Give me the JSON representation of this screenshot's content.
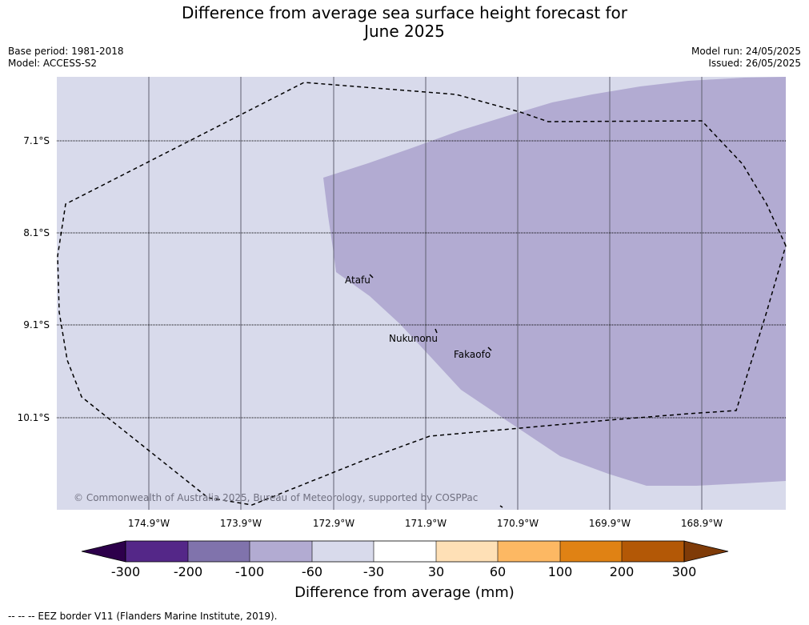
{
  "title_line1": "Difference from average sea surface height forecast for",
  "title_line2": "June 2025",
  "base_period": "Base period: 1981-2018",
  "model": "Model: ACCESS-S2",
  "model_run": "Model run: 24/05/2025",
  "issued": "Issued: 26/05/2025",
  "lat_labels": [
    "7.1°S",
    "8.1°S",
    "9.1°S",
    "10.1°S"
  ],
  "lon_labels": [
    "174.9°W",
    "173.9°W",
    "172.9°W",
    "171.9°W",
    "170.9°W",
    "169.9°W",
    "168.9°W"
  ],
  "places": [
    {
      "name": "Atafu",
      "lon": -172.5,
      "lat": -8.55
    },
    {
      "name": "Nukunonu",
      "lon": -171.85,
      "lat": -9.17
    },
    {
      "name": "Fakaofo",
      "lon": -171.2,
      "lat": -9.36
    }
  ],
  "copyright": "© Commonwealth of Australia 2025, Bureau of Meteorology, supported by COSPPac",
  "colorbar": {
    "title": "Difference from average (mm)",
    "ticks": [
      "-300",
      "-200",
      "-100",
      "-60",
      "-30",
      "30",
      "60",
      "100",
      "200",
      "300"
    ],
    "colors": [
      "#2d004b",
      "#542788",
      "#8073ac",
      "#b2abd2",
      "#d8daeb",
      "#ffffff",
      "#fee0b6",
      "#fdb863",
      "#e08214",
      "#b35806",
      "#7f3b08"
    ]
  },
  "legend_note": "--  --  -- EEZ border V11 (Flanders Marine Institute, 2019).",
  "colors": {
    "background_field": "#d8daeb",
    "forecast_area": "#b2abd2"
  }
}
